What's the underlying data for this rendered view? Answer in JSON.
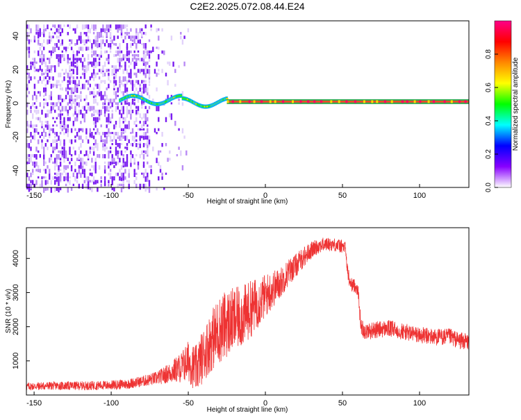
{
  "chart_data": [
    {
      "type": "heatmap",
      "title": "C2E2.2025.072.08.44.E24",
      "xlabel": "Height of straight line (km)",
      "ylabel": "Frequency (Hz)",
      "xlim": [
        -155,
        132
      ],
      "ylim": [
        -50,
        49
      ],
      "xticks": [
        -150,
        -100,
        -50,
        0,
        50,
        100
      ],
      "yticks": [
        -40,
        -20,
        0,
        20,
        40
      ],
      "grid": false,
      "colorbar": {
        "label": "Normalized spectral amplitude",
        "ticks": [
          0.0,
          0.2,
          0.4,
          0.6,
          0.8
        ],
        "tick_labels": [
          "0.0",
          "0.2",
          "0.4",
          "0.6",
          "0.8"
        ],
        "range": [
          0,
          1
        ],
        "colors": [
          "#ffffff",
          "#8800ff",
          "#0000ff",
          "#00ffff",
          "#00ff00",
          "#ffff00",
          "#ff8800",
          "#ff0000",
          "#ff0088"
        ]
      },
      "features": {
        "noise_region_x": [
          -155,
          -75
        ],
        "sparse_noise_x": [
          -75,
          -50
        ],
        "wandering_line_x": [
          -95,
          -25
        ],
        "steady_line_x": [
          -25,
          132
        ],
        "line_frequency": 1
      }
    },
    {
      "type": "line",
      "xlabel": "Height of straight line (km)",
      "ylabel": "SNR (10 * v/v)",
      "xlim": [
        -155,
        132
      ],
      "ylim": [
        0,
        4900
      ],
      "xticks": [
        -150,
        -100,
        -50,
        0,
        50,
        100
      ],
      "yticks": [
        1000,
        2000,
        3000,
        4000
      ],
      "color": "#ee3333",
      "grid": false,
      "x": [
        -155,
        -140,
        -120,
        -100,
        -90,
        -80,
        -70,
        -62,
        -55,
        -50,
        -45,
        -40,
        -35,
        -30,
        -25,
        -20,
        -15,
        -10,
        -5,
        0,
        5,
        10,
        15,
        20,
        25,
        30,
        35,
        40,
        45,
        50,
        52,
        53,
        55,
        58,
        60,
        62,
        65,
        70,
        80,
        90,
        100,
        110,
        120,
        125,
        132
      ],
      "y": [
        250,
        270,
        270,
        290,
        320,
        400,
        500,
        650,
        800,
        1000,
        750,
        1200,
        1600,
        1900,
        2100,
        2200,
        2300,
        2500,
        2700,
        2900,
        3100,
        3300,
        3600,
        3800,
        4050,
        4250,
        4380,
        4420,
        4400,
        4350,
        4300,
        3700,
        3250,
        3200,
        3100,
        2000,
        1850,
        1900,
        1950,
        1850,
        1750,
        1700,
        1700,
        1600,
        1550
      ],
      "noise_amplitude": [
        120,
        120,
        130,
        140,
        150,
        160,
        200,
        300,
        450,
        600,
        700,
        800,
        900,
        1000,
        1000,
        950,
        900,
        850,
        750,
        650,
        550,
        450,
        400,
        350,
        300,
        250,
        220,
        200,
        200,
        200,
        200,
        250,
        200,
        200,
        200,
        250,
        250,
        250,
        250,
        250,
        250,
        250,
        250,
        250,
        250
      ]
    }
  ]
}
